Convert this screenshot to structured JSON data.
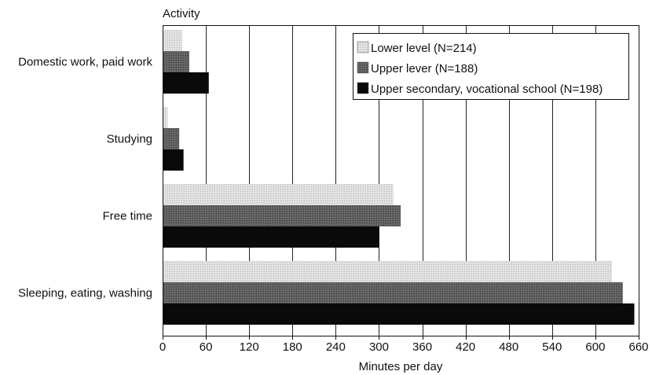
{
  "chart_data": {
    "type": "bar",
    "orientation": "horizontal",
    "title": "",
    "ylabel": "Activity",
    "xlabel": "Minutes per day",
    "xlim": [
      0,
      660
    ],
    "xticks": [
      0,
      60,
      120,
      180,
      240,
      300,
      360,
      420,
      480,
      540,
      600,
      660
    ],
    "grid": "vertical",
    "legend_position": "top-right",
    "categories": [
      "Domestic work, paid work",
      "Studying",
      "Free time",
      "Sleeping, eating, washing"
    ],
    "series": [
      {
        "name": "Lower level (N=214)",
        "color": "#d4d4d4",
        "pattern": "light-dotted",
        "values": [
          27,
          7,
          320,
          623
        ]
      },
      {
        "name": "Upper lever (N=188)",
        "color": "#6e6e6e",
        "pattern": "dark-dotted",
        "values": [
          37,
          23,
          330,
          638
        ]
      },
      {
        "name": "Upper secondary, vocational school (N=198)",
        "color": "#0a0a0a",
        "pattern": "solid",
        "values": [
          64,
          29,
          300,
          654
        ]
      }
    ]
  }
}
